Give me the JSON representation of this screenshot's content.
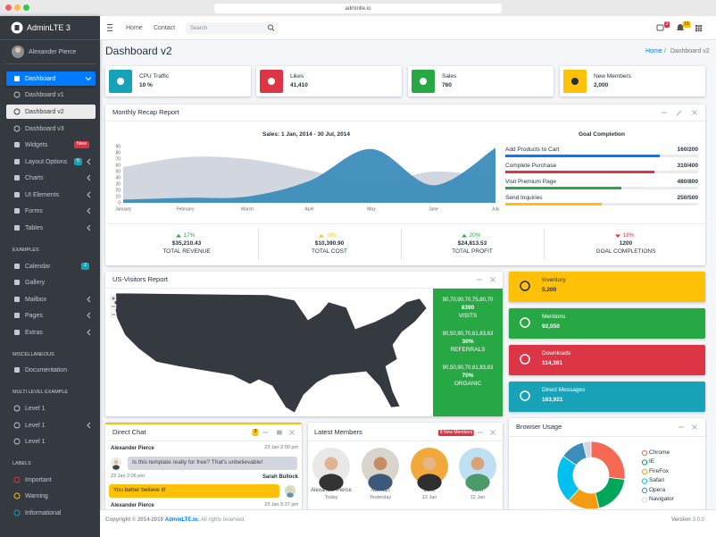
{
  "browser": {
    "url": "adminlte.io"
  },
  "sidebar": {
    "brand": "AdminLTE 3",
    "user": "Alexander Pierce",
    "menu": [
      {
        "label": "Dashboard"
      },
      {
        "label": "Dashboard v1"
      },
      {
        "label": "Dashboard v2"
      },
      {
        "label": "Dashboard v3"
      },
      {
        "label": "Widgets",
        "badge": "New",
        "badge_color": "#dc3545"
      },
      {
        "label": "Layout Options",
        "badge": "6",
        "badge_color": "#17a2b8"
      },
      {
        "label": "Charts"
      },
      {
        "label": "UI Elements"
      },
      {
        "label": "Forms"
      },
      {
        "label": "Tables"
      },
      {
        "header": "EXAMPLES"
      },
      {
        "label": "Calendar",
        "badge": "2",
        "badge_color": "#17a2b8"
      },
      {
        "label": "Gallery"
      },
      {
        "label": "Mailbox"
      },
      {
        "label": "Pages"
      },
      {
        "label": "Extras"
      },
      {
        "header": "MISCELLANEOUS"
      },
      {
        "label": "Documentation"
      },
      {
        "header": "MULTI LEVEL EXAMPLE"
      },
      {
        "label": "Level 1"
      },
      {
        "label": "Level 1"
      },
      {
        "label": "Level 1"
      },
      {
        "header": "LABELS"
      },
      {
        "label": "Important",
        "color": "#dc3545"
      },
      {
        "label": "Warning",
        "color": "#ffc107"
      },
      {
        "label": "Informational",
        "color": "#17a2b8"
      }
    ]
  },
  "navbar": {
    "links": [
      "Home",
      "Contact"
    ],
    "search_placeholder": "Search",
    "messages_badge": "3",
    "notifications_badge": "15"
  },
  "header": {
    "title": "Dashboard v2",
    "breadcrumb": [
      "Home",
      "Dashboard v2"
    ],
    "separator": "/"
  },
  "info_boxes": [
    {
      "title": "CPU Traffic",
      "value": "10 %",
      "color": "#17a2b8"
    },
    {
      "title": "Likes",
      "value": "41,410",
      "color": "#dc3545"
    },
    {
      "title": "Sales",
      "value": "760",
      "color": "#28a745"
    },
    {
      "title": "New Members",
      "value": "2,000",
      "color": "#ffc107"
    }
  ],
  "monthly_recap": {
    "title": "Monthly Recap Report",
    "chart": {
      "type": "area",
      "title": "Sales: 1 Jan, 2014 - 30 Jul, 2014",
      "categories": [
        "January",
        "February",
        "March",
        "April",
        "May",
        "June",
        "July"
      ],
      "series": [
        {
          "color": "#d2d6de",
          "values": [
            57,
            73,
            70,
            52,
            30,
            50,
            40
          ]
        },
        {
          "color": "#3c8dbc",
          "values": [
            5,
            8,
            10,
            35,
            86,
            28,
            88
          ]
        }
      ],
      "ylim": [
        0,
        90
      ],
      "yticks": [
        0,
        10,
        20,
        30,
        40,
        50,
        60,
        70,
        80,
        90
      ]
    },
    "goal_completion": {
      "title": "Goal Completion",
      "goals": [
        {
          "label": "Add Products to Cart",
          "value": "160/200",
          "color": "#007bff"
        },
        {
          "label": "Complete Purchase",
          "value": "310/400",
          "color": "#dc3545"
        },
        {
          "label": "Visit Premium Page",
          "value": "480/800",
          "color": "#28a745"
        },
        {
          "label": "Send Inquiries",
          "value": "250/500",
          "color": "#ffc107"
        }
      ]
    },
    "stats": [
      {
        "change": "17%",
        "amount": "$35,210.43",
        "label": "TOTAL REVENUE",
        "color": "#28a745"
      },
      {
        "change": "0%",
        "amount": "$10,390.90",
        "label": "TOTAL COST",
        "color": "#ffc107"
      },
      {
        "change": "20%",
        "amount": "$24,813.53",
        "label": "TOTAL PROFIT",
        "color": "#28a745"
      },
      {
        "change": "18%",
        "amount": "1200",
        "label": "GOAL COMPLETIONS",
        "color": "#dc3545"
      }
    ]
  },
  "visitors": {
    "title": "US-Visitors Report",
    "stats": [
      {
        "sparkline": "90,70,90,70,75,80,70",
        "value": "8390",
        "label": "VISITS"
      },
      {
        "sparkline": "90,50,90,70,61,83,63",
        "value": "30%",
        "label": "REFERRALS"
      },
      {
        "sparkline": "90,50,90,70,61,83,63",
        "value": "70%",
        "label": "ORGANIC"
      }
    ]
  },
  "side_boxes": [
    {
      "title": "Inventory",
      "value": "5,200",
      "color": "#ffc107"
    },
    {
      "title": "Mentions",
      "value": "92,050",
      "color": "#28a745"
    },
    {
      "title": "Downloads",
      "value": "114,381",
      "color": "#dc3545"
    },
    {
      "title": "Direct Messages",
      "value": "163,921",
      "color": "#17a2b8"
    }
  ],
  "direct_chat": {
    "title": "Direct Chat",
    "badge": "3",
    "messages": [
      {
        "name": "Alexander Pierce",
        "time": "23 Jan 2:00 pm",
        "text": "Is this template really for free? That's unbelievable!"
      },
      {
        "name": "Sarah Bullock",
        "time": "23 Jan 2:05 pm",
        "text": "You better believe it!"
      },
      {
        "name": "Alexander Pierce",
        "time": "23 Jan 5:37 pm"
      }
    ]
  },
  "latest_members": {
    "title": "Latest Members",
    "badge": "8 New Members",
    "members": [
      {
        "name": "Alexander Pierce",
        "date": "Today"
      },
      {
        "name": "Norman",
        "date": "Yesterday"
      },
      {
        "name": "Jane",
        "date": "12 Jan"
      },
      {
        "name": "John",
        "date": "12 Jan"
      }
    ]
  },
  "browser_usage": {
    "type": "pie",
    "title": "Browser Usage",
    "categories": [
      "Chrome",
      "IE",
      "FireFox",
      "Safari",
      "Opera",
      "Navigator"
    ],
    "values": [
      700,
      500,
      400,
      600,
      300,
      100
    ],
    "colors": [
      "#f56954",
      "#00a65a",
      "#f39c12",
      "#00c0ef",
      "#3c8dbc",
      "#d2d6de"
    ]
  },
  "footer": {
    "copyright": "Copyright © 2014-2019",
    "brand": "AdminLTE.io.",
    "rights": "All rights reserved.",
    "version_label": "Version",
    "version": "3.0.0"
  }
}
